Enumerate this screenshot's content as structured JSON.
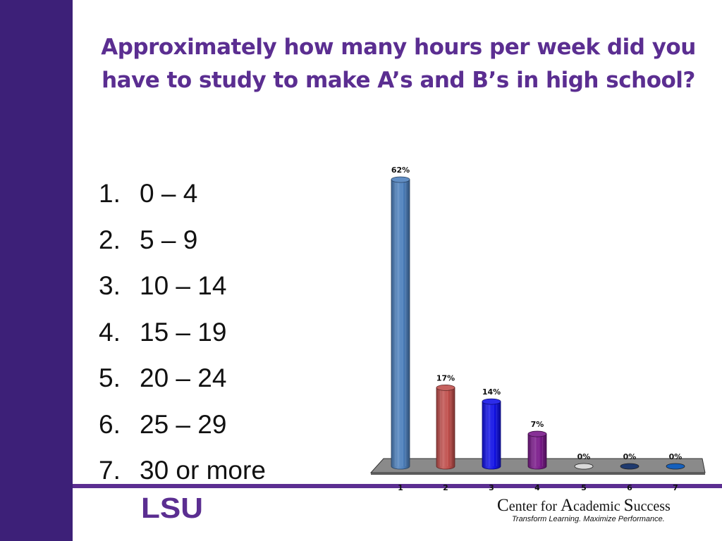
{
  "title": "Approximately how many hours per week did you have to study to make A’s and B’s in high school?",
  "options": [
    {
      "num": "1.",
      "label": "0 – 4"
    },
    {
      "num": "2.",
      "label": "5 – 9"
    },
    {
      "num": "3.",
      "label": "10 – 14"
    },
    {
      "num": "4.",
      "label": "15 – 19"
    },
    {
      "num": "5.",
      "label": "20 – 24"
    },
    {
      "num": "6.",
      "label": "25 – 29"
    },
    {
      "num": "7.",
      "label": "30 or more"
    }
  ],
  "chart_data": {
    "type": "bar",
    "style": "3d-cylinder",
    "categories": [
      "1",
      "2",
      "3",
      "4",
      "5",
      "6",
      "7"
    ],
    "values": [
      62,
      17,
      14,
      7,
      0,
      0,
      0
    ],
    "value_labels": [
      "62%",
      "17%",
      "14%",
      "7%",
      "0%",
      "0%",
      "0%"
    ],
    "colors": [
      "#4f81bd",
      "#c0504d",
      "#1414e6",
      "#7a1a8a",
      "#d9d9d9",
      "#1f3a6e",
      "#1560bd"
    ],
    "ylim": [
      0,
      62
    ],
    "grid": false,
    "legend": "none"
  },
  "footer": {
    "logo_text": "LSU",
    "center_c": "C",
    "center_enter": "enter for ",
    "center_a": "A",
    "center_cademic": "cademic ",
    "center_s": "S",
    "center_uccess": "uccess",
    "tagline": "Transform Learning. Maximize Performance."
  },
  "colors": {
    "sidebar": "#3d2078",
    "accent": "#5b2e91",
    "floor": "#808080"
  }
}
